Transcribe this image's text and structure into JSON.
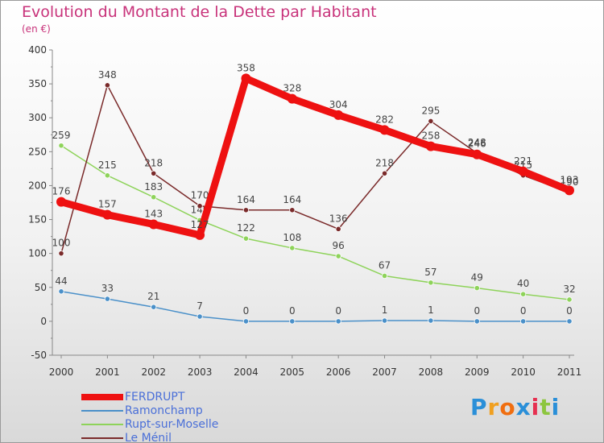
{
  "title": "Evolution du Montant de la Dette par Habitant",
  "unit": "(en €)",
  "brand": {
    "letters": [
      "P",
      "r",
      "o",
      "x",
      "i",
      "t",
      "i"
    ],
    "colors": [
      "#2a8fd8",
      "#f0a020",
      "#f06e10",
      "#2a8fd8",
      "#e63050",
      "#8dc63f",
      "#2a8fd8"
    ]
  },
  "chart_data": {
    "type": "line",
    "title": "Evolution du Montant de la Dette par Habitant",
    "subtitle": "(en €)",
    "xlabel": "",
    "ylabel": "",
    "x": [
      "2000",
      "2001",
      "2002",
      "2003",
      "2004",
      "2005",
      "2006",
      "2007",
      "2008",
      "2009",
      "2010",
      "2011"
    ],
    "ylim": [
      -50,
      400
    ],
    "yticks": [
      -50,
      0,
      50,
      100,
      150,
      200,
      250,
      300,
      350,
      400
    ],
    "grid": false,
    "legend_position": "bottom-left",
    "series": [
      {
        "name": "FERDRUPT",
        "color": "#ee1111",
        "values": [
          176,
          157,
          143,
          127,
          358,
          328,
          304,
          282,
          258,
          246,
          221,
          193
        ],
        "labels": [
          "176",
          "157",
          "143",
          "127",
          "358",
          "328",
          "304",
          "282",
          "258",
          "246",
          "221",
          "193"
        ]
      },
      {
        "name": "Ramonchamp",
        "color": "#4a90c9",
        "values": [
          44,
          33,
          21,
          7,
          0,
          0,
          0,
          1,
          1,
          0,
          0,
          0
        ],
        "labels": [
          "44",
          "33",
          "21",
          "7",
          "0",
          "0",
          "0",
          "1",
          "1",
          "0",
          "0",
          "0"
        ]
      },
      {
        "name": "Rupt-sur-Moselle",
        "color": "#8ed35a",
        "values": [
          259,
          215,
          183,
          149,
          122,
          108,
          96,
          67,
          57,
          49,
          40,
          32
        ],
        "labels": [
          "259",
          "215",
          "183",
          "149",
          "122",
          "108",
          "96",
          "67",
          "57",
          "49",
          "40",
          "32"
        ]
      },
      {
        "name": "Le Ménil",
        "color": "#7a2a2a",
        "values": [
          100,
          348,
          218,
          170,
          164,
          164,
          136,
          218,
          295,
          248,
          215,
          190
        ],
        "labels": [
          "100",
          "348",
          "218",
          "170",
          "164",
          "164",
          "136",
          "218",
          "295",
          "248",
          "215",
          "190"
        ]
      }
    ]
  }
}
